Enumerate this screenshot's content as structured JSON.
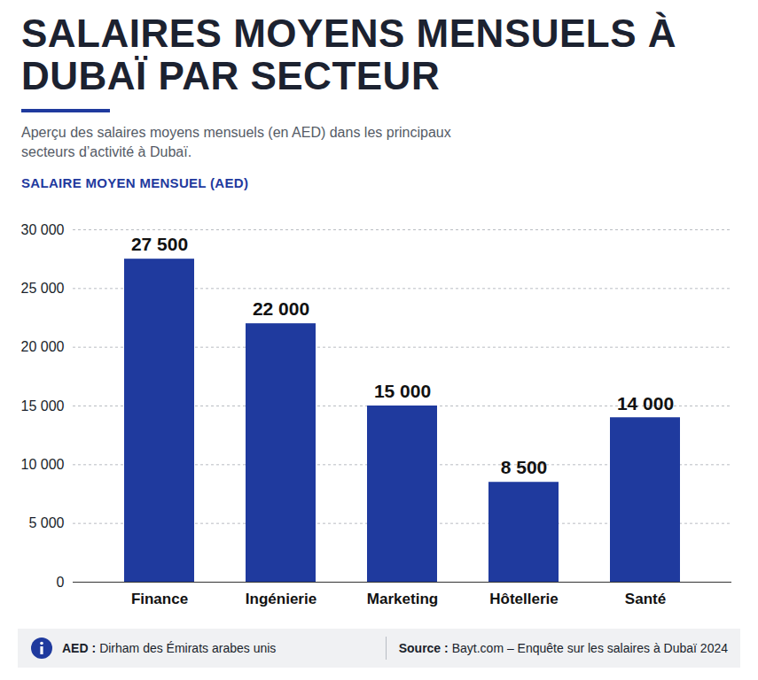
{
  "chart_data": {
    "type": "bar",
    "title": "SALAIRES MOYENS MENSUELS À DUBAÏ PAR SECTEUR",
    "subtitle": "Aperçu des salaires moyens mensuels (en AED) dans les principaux secteurs d’activité à Dubaï.",
    "y_label": "SALAIRE MOYEN MENSUEL (AED)",
    "categories": [
      "Finance",
      "Ingénierie",
      "Marketing",
      "Hôtellerie",
      "Santé"
    ],
    "values": [
      27500,
      22000,
      15000,
      8500,
      14000
    ],
    "value_labels": [
      "27 500",
      "22 000",
      "15 000",
      "8 500",
      "14 000"
    ],
    "color": "#1f3a9e",
    "ylim": [
      0,
      30000
    ],
    "yticks": [
      0,
      {
        "value": 5000,
        "label": "5 000"
      },
      {
        "value": 10000,
        "label": "10 000"
      },
      {
        "value": 15000,
        "label": "15 000"
      },
      {
        "value": 20000,
        "label": "20 000"
      },
      {
        "value": 25000,
        "label": "25 000"
      },
      {
        "value": 30000,
        "label": "30 000"
      }
    ],
    "grid": true,
    "data_labels": true,
    "footnote": {
      "term": "AED :",
      "text": "Dirham des Émirats arabes unis"
    },
    "source": {
      "term": "Source :",
      "text": "Bayt.com – Enquête sur les salaires à Dubaï 2024"
    }
  }
}
